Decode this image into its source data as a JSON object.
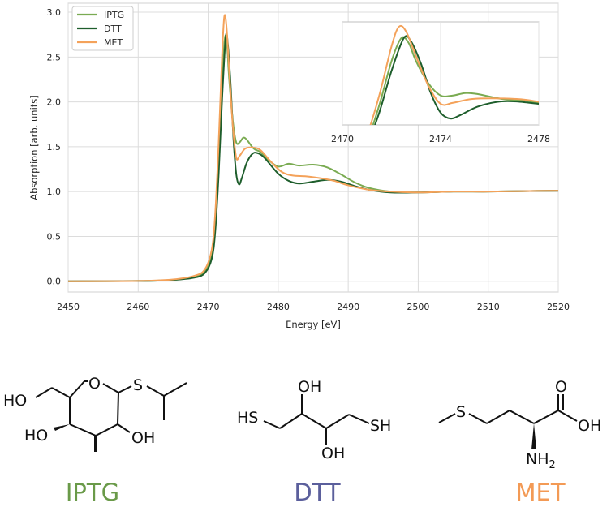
{
  "chart_data": {
    "type": "line",
    "xlabel": "Energy [eV]",
    "ylabel": "Absorption [arb. units]",
    "xlim": [
      2450,
      2520
    ],
    "ylim": [
      -0.12,
      3.1
    ],
    "xticks": [
      2450,
      2460,
      2470,
      2480,
      2490,
      2500,
      2510,
      2520
    ],
    "yticks": [
      0.0,
      0.5,
      1.0,
      1.5,
      2.0,
      2.5,
      3.0
    ],
    "grid": true,
    "legend_position": "top-left",
    "series": [
      {
        "name": "IPTG",
        "color": "#7aab52",
        "points": [
          [
            2450,
            0
          ],
          [
            2460,
            0.003
          ],
          [
            2465,
            0.015
          ],
          [
            2468,
            0.05
          ],
          [
            2469.5,
            0.11
          ],
          [
            2470.5,
            0.3
          ],
          [
            2471,
            0.62
          ],
          [
            2471.5,
            1.35
          ],
          [
            2472,
            2.25
          ],
          [
            2472.4,
            2.72
          ],
          [
            2472.7,
            2.62
          ],
          [
            2473,
            2.25
          ],
          [
            2473.5,
            1.8
          ],
          [
            2474,
            1.55
          ],
          [
            2474.5,
            1.55
          ],
          [
            2475,
            1.6
          ],
          [
            2475.5,
            1.58
          ],
          [
            2476.5,
            1.48
          ],
          [
            2477.5,
            1.44
          ],
          [
            2478.5,
            1.36
          ],
          [
            2480,
            1.28
          ],
          [
            2481.5,
            1.31
          ],
          [
            2483,
            1.29
          ],
          [
            2485,
            1.3
          ],
          [
            2487,
            1.27
          ],
          [
            2489,
            1.19
          ],
          [
            2491,
            1.1
          ],
          [
            2493,
            1.04
          ],
          [
            2496,
            1.0
          ],
          [
            2500,
            0.99
          ],
          [
            2505,
            1.0
          ],
          [
            2510,
            1.0
          ],
          [
            2515,
            1.005
          ],
          [
            2520,
            1.01
          ]
        ]
      },
      {
        "name": "DTT",
        "color": "#1e5e2c",
        "points": [
          [
            2450,
            0
          ],
          [
            2460,
            0.003
          ],
          [
            2465,
            0.015
          ],
          [
            2468,
            0.04
          ],
          [
            2469.5,
            0.09
          ],
          [
            2470.5,
            0.25
          ],
          [
            2471,
            0.55
          ],
          [
            2471.5,
            1.2
          ],
          [
            2472,
            2.05
          ],
          [
            2472.5,
            2.72
          ],
          [
            2472.8,
            2.65
          ],
          [
            2473.2,
            2.2
          ],
          [
            2473.6,
            1.6
          ],
          [
            2474,
            1.2
          ],
          [
            2474.4,
            1.08
          ],
          [
            2474.8,
            1.15
          ],
          [
            2475.5,
            1.32
          ],
          [
            2476.3,
            1.42
          ],
          [
            2477,
            1.43
          ],
          [
            2478,
            1.38
          ],
          [
            2480,
            1.2
          ],
          [
            2481.5,
            1.12
          ],
          [
            2483,
            1.09
          ],
          [
            2485,
            1.11
          ],
          [
            2487,
            1.13
          ],
          [
            2489,
            1.11
          ],
          [
            2491,
            1.06
          ],
          [
            2493,
            1.02
          ],
          [
            2496,
            0.99
          ],
          [
            2500,
            0.99
          ],
          [
            2505,
            1.0
          ],
          [
            2510,
            1.0
          ],
          [
            2515,
            1.005
          ],
          [
            2520,
            1.01
          ]
        ]
      },
      {
        "name": "MET",
        "color": "#f4a25a",
        "points": [
          [
            2450,
            0
          ],
          [
            2460,
            0.003
          ],
          [
            2465,
            0.02
          ],
          [
            2468,
            0.06
          ],
          [
            2469.5,
            0.13
          ],
          [
            2470.5,
            0.35
          ],
          [
            2471,
            0.75
          ],
          [
            2471.5,
            1.55
          ],
          [
            2472,
            2.55
          ],
          [
            2472.3,
            2.95
          ],
          [
            2472.6,
            2.85
          ],
          [
            2473,
            2.35
          ],
          [
            2473.5,
            1.75
          ],
          [
            2474,
            1.38
          ],
          [
            2474.5,
            1.4
          ],
          [
            2475.3,
            1.48
          ],
          [
            2476.5,
            1.49
          ],
          [
            2477.5,
            1.46
          ],
          [
            2479,
            1.33
          ],
          [
            2480.5,
            1.22
          ],
          [
            2482,
            1.18
          ],
          [
            2484,
            1.17
          ],
          [
            2486,
            1.15
          ],
          [
            2488,
            1.12
          ],
          [
            2490,
            1.07
          ],
          [
            2493,
            1.02
          ],
          [
            2496,
            1.0
          ],
          [
            2500,
            0.99
          ],
          [
            2505,
            1.0
          ],
          [
            2510,
            1.0
          ],
          [
            2515,
            1.005
          ],
          [
            2520,
            1.01
          ]
        ]
      }
    ],
    "inset": {
      "xlim": [
        2470,
        2478
      ],
      "xticks": [
        2470,
        2474,
        2478
      ],
      "ylim": [
        0.95,
        3.05
      ],
      "location": "top-right"
    }
  },
  "captions": {
    "iptg": "IPTG",
    "dtt": "DTT",
    "met": "MET"
  },
  "colors": {
    "iptg_caption": "#6a9a49",
    "dtt_caption": "#5b5f9c",
    "met_caption": "#f39a55"
  },
  "molecules": {
    "iptg": {
      "ho_top": "HO",
      "o_ring": "O",
      "s": "S",
      "ho_left": "HO",
      "oh_right": "OH"
    },
    "dtt": {
      "oh_top": "OH",
      "hs": "HS",
      "sh": "SH",
      "oh_bottom": "OH"
    },
    "met": {
      "s": "S",
      "o": "O",
      "oh": "OH",
      "nh": "NH",
      "nh_sub": "2"
    }
  }
}
